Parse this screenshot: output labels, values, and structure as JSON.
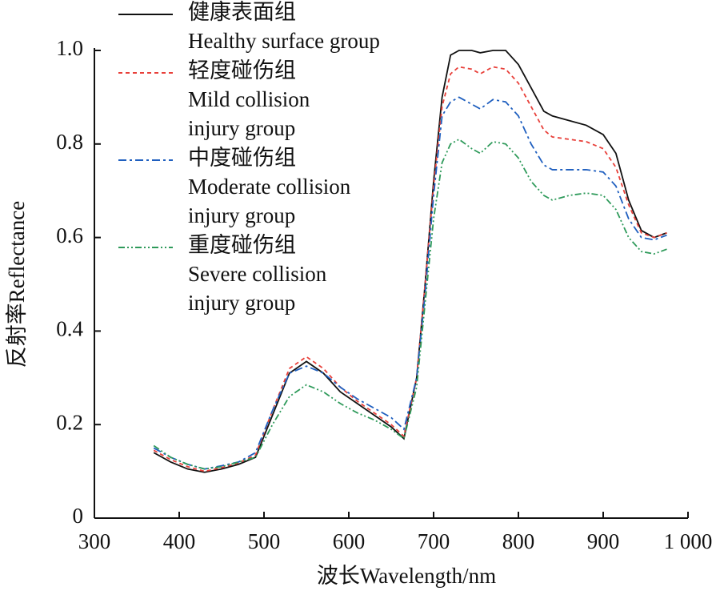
{
  "chart_data": {
    "type": "line",
    "x_label": "波长Wavelength/nm",
    "y_label": "反射率Reflectance",
    "xlim": [
      300,
      1000
    ],
    "ylim": [
      0,
      1
    ],
    "xticks": [
      300,
      400,
      500,
      600,
      700,
      800,
      900,
      {
        "value": 1000,
        "label": "1 000"
      }
    ],
    "yticks": [
      0,
      0.2,
      0.4,
      0.6,
      0.8,
      {
        "value": 1,
        "label": "1.0"
      }
    ],
    "x": [
      370,
      390,
      410,
      430,
      450,
      470,
      490,
      510,
      530,
      550,
      570,
      590,
      610,
      630,
      650,
      665,
      680,
      690,
      700,
      710,
      720,
      730,
      745,
      755,
      770,
      785,
      800,
      815,
      830,
      840,
      860,
      880,
      900,
      915,
      930,
      945,
      960,
      975
    ],
    "series": [
      {
        "name": "健康表面组",
        "label_lines": [
          "Healthy surface group"
        ],
        "color": "#111111",
        "dash": "none",
        "values": [
          0.14,
          0.12,
          0.105,
          0.098,
          0.105,
          0.115,
          0.13,
          0.22,
          0.31,
          0.335,
          0.31,
          0.27,
          0.245,
          0.22,
          0.195,
          0.17,
          0.3,
          0.5,
          0.72,
          0.9,
          0.99,
          1.0,
          1.0,
          0.995,
          1.0,
          1.0,
          0.97,
          0.92,
          0.87,
          0.86,
          0.85,
          0.84,
          0.82,
          0.78,
          0.68,
          0.615,
          0.6,
          0.61
        ]
      },
      {
        "name": "轻度碰伤组",
        "label_lines": [
          "Mild collision",
          "injury group"
        ],
        "color": "#e8403a",
        "dash": "5,4",
        "values": [
          0.145,
          0.125,
          0.11,
          0.1,
          0.108,
          0.118,
          0.135,
          0.23,
          0.32,
          0.345,
          0.32,
          0.28,
          0.25,
          0.225,
          0.2,
          0.175,
          0.3,
          0.5,
          0.71,
          0.88,
          0.95,
          0.965,
          0.96,
          0.95,
          0.965,
          0.96,
          0.93,
          0.88,
          0.83,
          0.815,
          0.81,
          0.805,
          0.79,
          0.75,
          0.67,
          0.61,
          0.6,
          0.61
        ]
      },
      {
        "name": "中度碰伤组",
        "label_lines": [
          "Moderate collision",
          "injury group"
        ],
        "color": "#1f5fbf",
        "dash": "10,4,3,4",
        "values": [
          0.15,
          0.13,
          0.115,
          0.105,
          0.112,
          0.12,
          0.14,
          0.23,
          0.31,
          0.325,
          0.31,
          0.28,
          0.255,
          0.235,
          0.215,
          0.19,
          0.3,
          0.48,
          0.69,
          0.86,
          0.89,
          0.9,
          0.885,
          0.875,
          0.895,
          0.89,
          0.86,
          0.8,
          0.755,
          0.745,
          0.745,
          0.745,
          0.74,
          0.71,
          0.64,
          0.6,
          0.595,
          0.605
        ]
      },
      {
        "name": "重度碰伤组",
        "label_lines": [
          "Severe collision",
          "injury group"
        ],
        "color": "#2e9a5a",
        "dash": "8,3,2,3,2,3",
        "values": [
          0.155,
          0.13,
          0.115,
          0.105,
          0.11,
          0.12,
          0.13,
          0.2,
          0.26,
          0.285,
          0.27,
          0.245,
          0.225,
          0.21,
          0.19,
          0.17,
          0.28,
          0.46,
          0.64,
          0.76,
          0.8,
          0.81,
          0.79,
          0.78,
          0.805,
          0.8,
          0.77,
          0.72,
          0.69,
          0.68,
          0.69,
          0.695,
          0.69,
          0.66,
          0.6,
          0.57,
          0.565,
          0.575
        ]
      }
    ]
  }
}
